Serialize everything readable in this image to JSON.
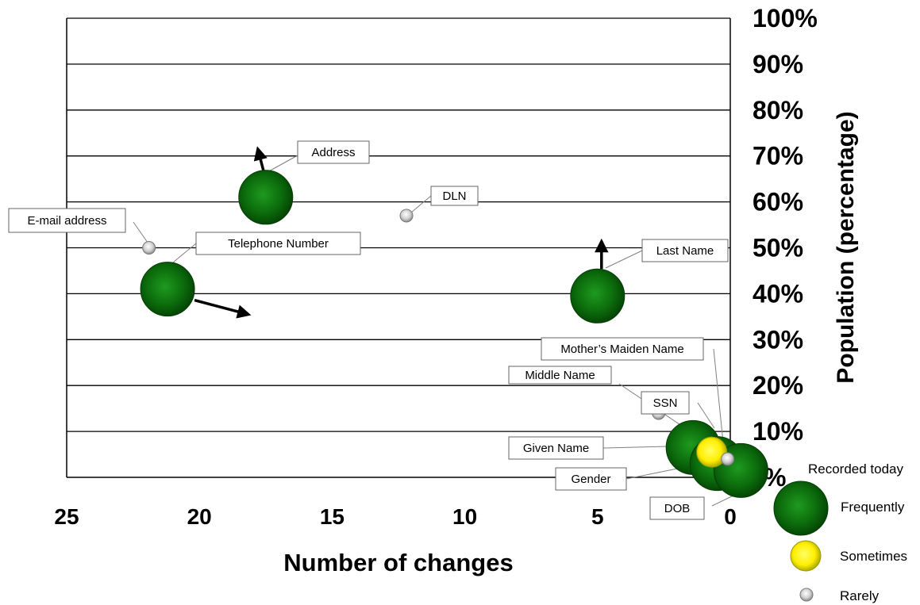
{
  "chart_data": {
    "type": "scatter",
    "xlabel": "Number of changes",
    "ylabel": "Population (percentage)",
    "xlim": [
      25,
      0
    ],
    "x_reversed": true,
    "ylim": [
      0,
      100
    ],
    "x_ticks": [
      "25",
      "20",
      "15",
      "10",
      "5",
      "0"
    ],
    "y_ticks": [
      "%",
      "10%",
      "20%",
      "30%",
      "40%",
      "50%",
      "60%",
      "70%",
      "80%",
      "90%",
      "100%"
    ],
    "grid": true,
    "legend": {
      "title": "Recorded today",
      "placement": "bottom-right",
      "items": [
        {
          "label": "Frequently",
          "category": "frequently"
        },
        {
          "label": "Sometimes",
          "category": "sometimes"
        },
        {
          "label": "Rarely",
          "category": "rarely"
        }
      ]
    },
    "points": [
      {
        "label": "Address",
        "x": 17.5,
        "y": 61,
        "category": "frequently",
        "arrow": "up-left"
      },
      {
        "label": "DLN",
        "x": 12.2,
        "y": 57,
        "category": "rarely"
      },
      {
        "label": "E-mail address",
        "x": 21.9,
        "y": 50,
        "category": "rarely"
      },
      {
        "label": "Telephone Number",
        "x": 21.2,
        "y": 41,
        "category": "frequently",
        "arrow": "right-down"
      },
      {
        "label": "Last Name",
        "x": 5.0,
        "y": 39.5,
        "category": "frequently",
        "arrow": "up"
      },
      {
        "label": "SSN",
        "x": 2.7,
        "y": 14,
        "category": "rarely"
      },
      {
        "label": "Given Name",
        "x": 1.4,
        "y": 6.5,
        "category": "frequently"
      },
      {
        "label": "Gender",
        "x": 0.5,
        "y": 3,
        "category": "frequently"
      },
      {
        "label": "Mother’s Maiden Name",
        "x": 0.1,
        "y": 4,
        "category": "rarely"
      },
      {
        "label": "Middle Name",
        "x": 0.7,
        "y": 5.5,
        "category": "sometimes"
      },
      {
        "label": "DOB",
        "x": -0.4,
        "y": 1.5,
        "category": "frequently"
      }
    ]
  },
  "colors": {
    "frequently": "#0b6a0b",
    "frequently_dark": "#043d04",
    "sometimes": "#ffff00",
    "sometimes_dark": "#9a9a00",
    "rarely": "#d9d9d9",
    "rarely_dark": "#7a7a7a",
    "grid": "#000000"
  }
}
